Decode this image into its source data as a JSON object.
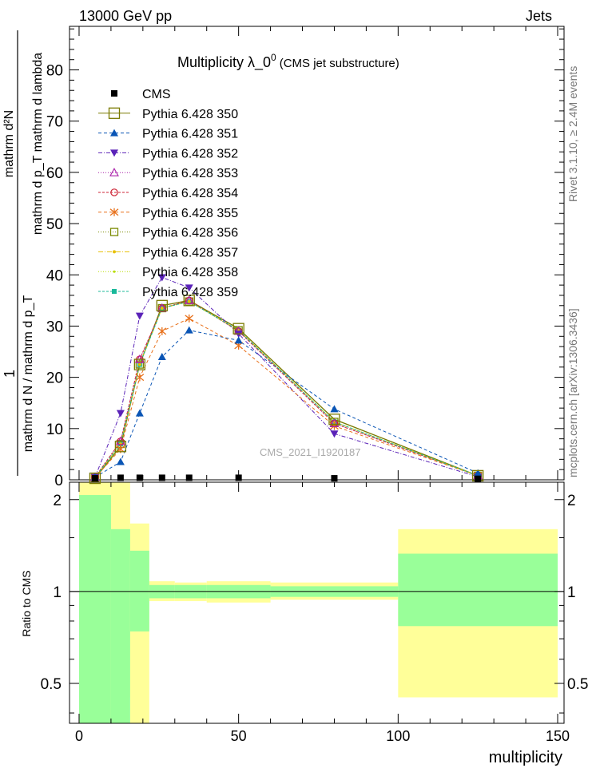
{
  "header": {
    "left": "13000 GeV pp",
    "right": "Jets"
  },
  "side": {
    "rivet": "Rivet 3.1.10, ≥ 2.4M events",
    "mcplots": "mcplots.cern.ch [arXiv:1306.3436]"
  },
  "chart_data": {
    "type": "line",
    "title": "Multiplicity  λ_0",
    "title_sup": "0",
    "title_suffix": "(CMS jet substructure)",
    "watermark": "CMS_2021_I1920187",
    "ylabel_num": "1",
    "ylabel_frac_top": "mathrm d²N",
    "ylabel_frac_bottom": "mathrm d p_T mathrm d lambda",
    "ylabel_denominator": "mathrm d N / mathrm d p_T",
    "xlabel": "multiplicity",
    "ratio_ylabel": "Ratio to CMS",
    "xlim": [
      -3,
      152
    ],
    "ylim": [
      0,
      88.5
    ],
    "ratio_ylim": [
      0.37,
      2.28
    ],
    "x_ticks": [
      "0",
      "50",
      "100",
      "150"
    ],
    "y_ticks": [
      "0",
      "10",
      "20",
      "30",
      "40",
      "50",
      "60",
      "70",
      "80"
    ],
    "ratio_ticks": [
      "0.5",
      "1",
      "2"
    ],
    "x": [
      5,
      13,
      19,
      26,
      34.5,
      50,
      80,
      125
    ],
    "cms": [
      0.3,
      0.4,
      0.4,
      0.4,
      0.4,
      0.4,
      0.3,
      0.2
    ],
    "series": [
      {
        "name": "Pythia 6.428 350",
        "color": "#7a7a00",
        "marker": "open-square-large",
        "dash": "",
        "values": [
          0.3,
          6.5,
          22.5,
          34,
          35,
          29.5,
          11.8,
          0.8
        ]
      },
      {
        "name": "Pythia 6.428 351",
        "color": "#0a55b5",
        "marker": "triangle-up",
        "dash": "4,3",
        "values": [
          0.5,
          3.5,
          13,
          24,
          29.2,
          27.2,
          13.8,
          1.3
        ]
      },
      {
        "name": "Pythia 6.428 352",
        "color": "#5a22b8",
        "marker": "triangle-down",
        "dash": "5,2,1,2",
        "values": [
          0.5,
          13,
          32,
          39.5,
          37.5,
          28.5,
          9,
          0.6
        ]
      },
      {
        "name": "Pythia 6.428 353",
        "color": "#aa22aa",
        "marker": "open-triangle",
        "dash": "1,2",
        "values": [
          0.5,
          7.5,
          23.5,
          33.5,
          35,
          29,
          11,
          0.8
        ]
      },
      {
        "name": "Pythia 6.428 354",
        "color": "#cc2233",
        "marker": "open-circle",
        "dash": "3,2",
        "values": [
          0.5,
          7.5,
          23.5,
          33.5,
          35,
          29,
          11,
          0.8
        ]
      },
      {
        "name": "Pythia 6.428 355",
        "color": "#e8701a",
        "marker": "star",
        "dash": "4,3",
        "values": [
          0.4,
          6,
          20,
          29,
          31.5,
          26.2,
          10.5,
          0.8
        ]
      },
      {
        "name": "Pythia 6.428 356",
        "color": "#7a8a00",
        "marker": "open-square",
        "dash": "1,2",
        "values": [
          0.4,
          7,
          22.5,
          33.5,
          34.8,
          29.2,
          11.3,
          0.8
        ]
      },
      {
        "name": "Pythia 6.428 357",
        "color": "#e8c000",
        "marker": "dot",
        "dash": "6,2,1,2",
        "values": [
          0.4,
          7,
          22.5,
          33.5,
          34.8,
          29.2,
          11.3,
          0.8
        ]
      },
      {
        "name": "Pythia 6.428 358",
        "color": "#b8dd00",
        "marker": "small-dot",
        "dash": "1,2",
        "values": [
          0.4,
          7,
          22.5,
          33.5,
          34.8,
          29.2,
          11.3,
          0.8
        ]
      },
      {
        "name": "Pythia 6.428 359",
        "color": "#18b89a",
        "marker": "filled-square",
        "dash": "3,2",
        "values": [
          0.4,
          7,
          22.5,
          33.5,
          34.8,
          29.2,
          11.3,
          0.8
        ]
      }
    ],
    "ratio_bands": [
      {
        "xlo": 0,
        "xhi": 10,
        "yellow": [
          0.37,
          2.28
        ],
        "green": [
          0.37,
          2.07
        ]
      },
      {
        "xlo": 10,
        "xhi": 16,
        "yellow": [
          0.45,
          2.28
        ],
        "green": [
          0.37,
          1.6
        ]
      },
      {
        "xlo": 16,
        "xhi": 22,
        "yellow": [
          0.37,
          1.67
        ],
        "green": [
          0.74,
          1.36
        ]
      },
      {
        "xlo": 22,
        "xhi": 30,
        "yellow": [
          0.93,
          1.08
        ],
        "green": [
          0.95,
          1.05
        ]
      },
      {
        "xlo": 30,
        "xhi": 40,
        "yellow": [
          0.93,
          1.07
        ],
        "green": [
          0.95,
          1.05
        ]
      },
      {
        "xlo": 40,
        "xhi": 60,
        "yellow": [
          0.92,
          1.08
        ],
        "green": [
          0.95,
          1.05
        ]
      },
      {
        "xlo": 60,
        "xhi": 100,
        "yellow": [
          0.94,
          1.07
        ],
        "green": [
          0.96,
          1.04
        ]
      },
      {
        "xlo": 100,
        "xhi": 150,
        "yellow": [
          0.45,
          1.6
        ],
        "green": [
          0.77,
          1.33
        ]
      }
    ]
  }
}
